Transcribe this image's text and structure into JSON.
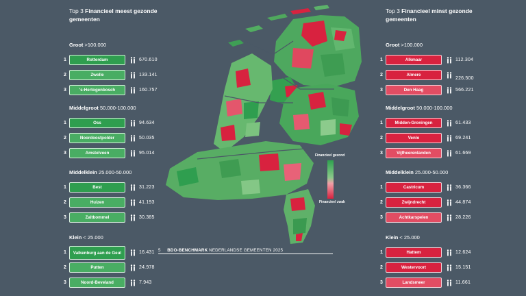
{
  "left": {
    "title_prefix": "Top 3 ",
    "title_bold": "Financieel meest gezonde gemeenten",
    "groups": [
      {
        "size_bold": "Groot",
        "size_range": " >100.000",
        "items": [
          {
            "rank": "1",
            "name": "Rotterdam",
            "population": "670.610"
          },
          {
            "rank": "2",
            "name": "Zwolle",
            "population": "133.141"
          },
          {
            "rank": "3",
            "name": "'s-Hertogenbosch",
            "population": "160.757"
          }
        ]
      },
      {
        "size_bold": "Middelgroot",
        "size_range": " 50.000-100.000",
        "items": [
          {
            "rank": "1",
            "name": "Oss",
            "population": "94.634"
          },
          {
            "rank": "2",
            "name": "Noordoostpolder",
            "population": "50.035"
          },
          {
            "rank": "3",
            "name": "Amstelveen",
            "population": "95.014"
          }
        ]
      },
      {
        "size_bold": "Middelklein",
        "size_range": " 25.000-50.000",
        "items": [
          {
            "rank": "1",
            "name": "Best",
            "population": "31.223"
          },
          {
            "rank": "2",
            "name": "Huizen",
            "population": "41.193"
          },
          {
            "rank": "3",
            "name": "Zaltbommel",
            "population": "30.385"
          }
        ]
      },
      {
        "size_bold": "Klein",
        "size_range": " < 25.000",
        "items": [
          {
            "rank": "1",
            "name": "Valkenburg aan de Geul",
            "population": "16.431"
          },
          {
            "rank": "2",
            "name": "Putten",
            "population": "24.978"
          },
          {
            "rank": "3",
            "name": "Noord-Beveland",
            "population": "7.943"
          }
        ]
      }
    ]
  },
  "right": {
    "title_prefix": "Top 3 ",
    "title_bold": "Financieel minst gezonde gemeenten",
    "groups": [
      {
        "size_bold": "Groot",
        "size_range": " >100.000",
        "items": [
          {
            "rank": "1",
            "name": "Alkmaar",
            "population": "112.304"
          },
          {
            "rank": "2",
            "name": "Almere",
            "population": "226.500"
          },
          {
            "rank": "3",
            "name": "Den Haag",
            "population": "566.221"
          }
        ]
      },
      {
        "size_bold": "Middelgroot",
        "size_range": " 50.000-100.000",
        "items": [
          {
            "rank": "1",
            "name": "Midden-Groningen",
            "population": "61.433"
          },
          {
            "rank": "2",
            "name": "Venlo",
            "population": "69.241"
          },
          {
            "rank": "3",
            "name": "Vijfheerenlanden",
            "population": "61.669"
          }
        ]
      },
      {
        "size_bold": "Middelklein",
        "size_range": " 25.000-50.000",
        "items": [
          {
            "rank": "1",
            "name": "Castricum",
            "population": "36.366"
          },
          {
            "rank": "2",
            "name": "Zwijndrecht",
            "population": "44.874"
          },
          {
            "rank": "3",
            "name": "Achtkarspelen",
            "population": "28.226"
          }
        ]
      },
      {
        "size_bold": "Klein",
        "size_range": " < 25.000",
        "items": [
          {
            "rank": "1",
            "name": "Hattem",
            "population": "12.624"
          },
          {
            "rank": "2",
            "name": "Westervoort",
            "population": "15.151"
          },
          {
            "rank": "3",
            "name": "Landsmeer",
            "population": "11.661"
          }
        ]
      }
    ]
  },
  "legend": {
    "top": "Financieel gezond",
    "bottom": "Financieel zwak"
  },
  "footer": {
    "page": "5",
    "brand": "BDO-BENCHMARK",
    "text": " NEDERLANDSE GEMEENTEN 2025"
  },
  "icons": {
    "population": "people-icon",
    "map": "netherlands-map"
  },
  "colors": {
    "healthy": "#2f9e4f",
    "weak": "#d8223f",
    "background": "#4b5966"
  }
}
